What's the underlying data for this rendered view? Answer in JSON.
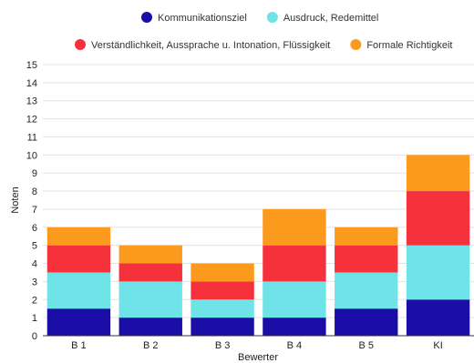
{
  "chart_data": {
    "type": "bar",
    "stacked": true,
    "categories": [
      "B 1",
      "B 2",
      "B 3",
      "B 4",
      "B 5",
      "KI"
    ],
    "series": [
      {
        "name": "Kommunikationsziel",
        "color": "#1a0ea6",
        "values": [
          1.5,
          1,
          1,
          1,
          1.5,
          2
        ]
      },
      {
        "name": "Ausdruck, Redemittel",
        "color": "#6ee3e8",
        "values": [
          2,
          2,
          1,
          2,
          2,
          3
        ]
      },
      {
        "name": "Verständlichkeit, Aussprache u. Intonation, Flüssigkeit",
        "color": "#f5323c",
        "values": [
          1.5,
          1,
          1,
          2,
          1.5,
          3
        ]
      },
      {
        "name": "Formale Richtigkeit",
        "color": "#fb9a1c",
        "values": [
          1,
          1,
          1,
          2,
          1,
          2
        ]
      }
    ],
    "xlabel": "Bewerter",
    "ylabel": "Noten",
    "ylim": [
      0,
      15
    ],
    "yticks": [
      0,
      1,
      2,
      3,
      4,
      5,
      6,
      7,
      8,
      9,
      10,
      11,
      12,
      13,
      14,
      15
    ],
    "grid": true,
    "legend_position": "top"
  }
}
